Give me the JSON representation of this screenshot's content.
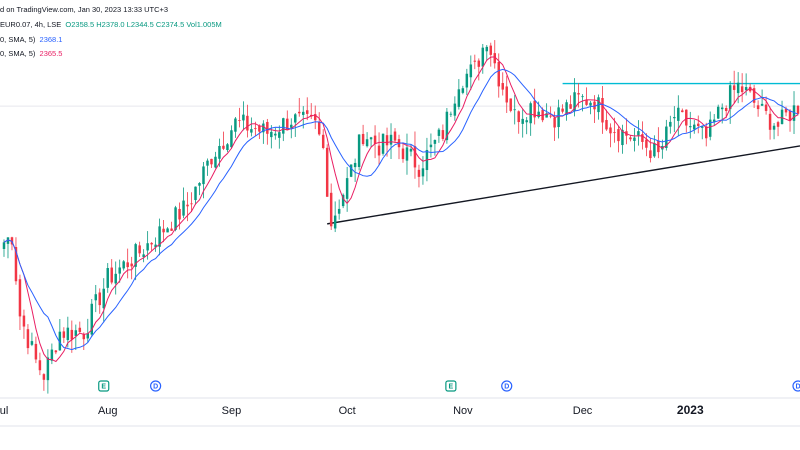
{
  "header": {
    "line1": "d on TradingView.com, Jan 30, 2023 13:33 UTC+3",
    "line2_prefix": "EUR0.07, 4h, LSE",
    "ohlc": "O2358.5  H2378.0  L2344.5  C2374.5  Vol1.005M",
    "ma1_label": "0, SMA, 5)",
    "ma1_value": "2368.1",
    "ma2_label": "0, SMA, 5)",
    "ma2_value": "2365.5"
  },
  "colors": {
    "up": "#089981",
    "down": "#f23645",
    "ma_fast": "#e91e63",
    "ma_slow": "#2962ff",
    "resistance": "#00bcd4",
    "support": "#131722",
    "marker_e": "#089981",
    "marker_d": "#2962ff"
  },
  "chart_data": {
    "type": "candlestick",
    "x_labels": [
      {
        "label": "ul",
        "index": 0
      },
      {
        "label": "Aug",
        "index": 26
      },
      {
        "label": "Sep",
        "index": 57
      },
      {
        "label": "Oct",
        "index": 86
      },
      {
        "label": "Nov",
        "index": 115
      },
      {
        "label": "Dec",
        "index": 145
      },
      {
        "label": "2023",
        "index": 172,
        "bold": true
      },
      {
        "label": "",
        "index": 196
      }
    ],
    "ylim": [
      1800,
      3000
    ],
    "candle_count": 200,
    "anchors": [
      [
        0,
        2270
      ],
      [
        2,
        2290
      ],
      [
        4,
        2050
      ],
      [
        8,
        1910
      ],
      [
        10,
        1870
      ],
      [
        14,
        2000
      ],
      [
        20,
        2000
      ],
      [
        26,
        2160
      ],
      [
        34,
        2240
      ],
      [
        46,
        2380
      ],
      [
        52,
        2530
      ],
      [
        58,
        2630
      ],
      [
        66,
        2600
      ],
      [
        72,
        2640
      ],
      [
        78,
        2620
      ],
      [
        80,
        2550
      ],
      [
        82,
        2330
      ],
      [
        86,
        2450
      ],
      [
        90,
        2600
      ],
      [
        94,
        2560
      ],
      [
        98,
        2570
      ],
      [
        104,
        2500
      ],
      [
        110,
        2600
      ],
      [
        114,
        2760
      ],
      [
        118,
        2790
      ],
      [
        121,
        2890
      ],
      [
        124,
        2770
      ],
      [
        128,
        2650
      ],
      [
        132,
        2680
      ],
      [
        138,
        2650
      ],
      [
        144,
        2700
      ],
      [
        148,
        2700
      ],
      [
        152,
        2620
      ],
      [
        160,
        2570
      ],
      [
        164,
        2530
      ],
      [
        168,
        2650
      ],
      [
        172,
        2620
      ],
      [
        176,
        2580
      ],
      [
        180,
        2680
      ],
      [
        184,
        2740
      ],
      [
        186,
        2720
      ],
      [
        190,
        2660
      ],
      [
        194,
        2620
      ],
      [
        196,
        2650
      ],
      [
        199,
        2680
      ]
    ],
    "events": [
      {
        "type": "E",
        "index": 25
      },
      {
        "type": "D",
        "index": 38
      },
      {
        "type": "E",
        "index": 112
      },
      {
        "type": "D",
        "index": 126
      },
      {
        "type": "D",
        "index": 199
      }
    ],
    "resistance_line": {
      "x0": 140,
      "x1": 199,
      "y": 2748
    },
    "support_line": {
      "x0": 81,
      "y0": 2325,
      "x1": 199,
      "y1": 2560
    },
    "grid_line_y": 2680
  }
}
